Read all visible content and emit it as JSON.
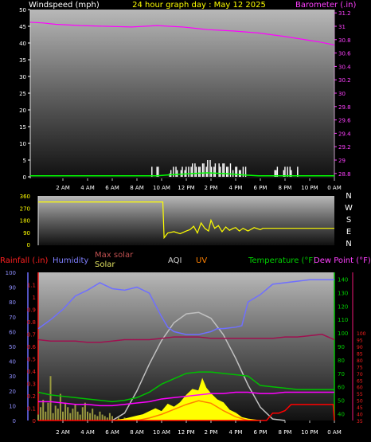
{
  "header": {
    "left_label": "Windspeed (mph)",
    "title": "24 hour graph day : May 12 2025",
    "right_label": "Barometer (.in)"
  },
  "colors": {
    "windspeed": "#ffffff",
    "gust": "#ffffff",
    "wind_avg": "#00ff00",
    "barometer": "#ff00ff",
    "wind_dir": "#ffff00",
    "rainfall": "#ff0000",
    "humidity": "#6f6fff",
    "max_solar": "#c0c0c0",
    "solar": "#ffff00",
    "aqi": "#ffffff",
    "uv": "#ff8000",
    "temperature": "#00c000",
    "dew_point": "#ff00ff",
    "indoor_temp": "#a01050",
    "rain_rate": "#ff0000"
  },
  "legend": {
    "rainfall": "Rainfall (.in)",
    "humidity": "Humidity",
    "max_solar": "Max solar",
    "solar": "Solar",
    "aqi": "AQI",
    "uv": "UV",
    "temperature": "Temperature (°F)",
    "dew_point": "Dew Point (°F)"
  },
  "x_tick_labels": [
    "2 AM",
    "4 AM",
    "6 AM",
    "8 AM",
    "10 AM",
    "12 PM",
    "2 PM",
    "4 PM",
    "6 PM",
    "8 PM",
    "10 PM",
    "0 AM"
  ],
  "chart_data": [
    {
      "type": "line",
      "x": [
        0,
        2,
        4,
        6,
        8,
        10,
        12,
        14,
        16,
        18,
        20,
        22,
        24
      ],
      "y_left_ticks": [
        0,
        5,
        10,
        15,
        20,
        25,
        30,
        35,
        40,
        45,
        50
      ],
      "y_right_ticks": [
        "28.8",
        "29",
        "29.2",
        "29.4",
        "29.6",
        "29.8",
        "30",
        "30.2",
        "30.4",
        "30.6",
        "30.8",
        "31",
        "31.2"
      ],
      "ylim_left": [
        0,
        50
      ],
      "ylim_right": [
        28.75,
        31.25
      ],
      "series": [
        {
          "name": "Barometer",
          "x": [
            0,
            1,
            2,
            4,
            6,
            8,
            10,
            12,
            13,
            14,
            16,
            18,
            20,
            22,
            23,
            24
          ],
          "values": [
            31.06,
            31.05,
            31.03,
            31.01,
            31.0,
            30.99,
            31.01,
            30.99,
            30.97,
            30.95,
            30.93,
            30.9,
            30.85,
            30.79,
            30.76,
            30.72
          ]
        },
        {
          "name": "Windspeed",
          "x": [
            9.5,
            10,
            10.2,
            11,
            11.3,
            11.6,
            12,
            12.2,
            12.5,
            12.8,
            13.1,
            13.4,
            13.7,
            14,
            14.3,
            14.6,
            15,
            15.3,
            15.6,
            16,
            16.3,
            16.6,
            17,
            19.3,
            19.5,
            20,
            20.3,
            20.6,
            21.1
          ],
          "values": [
            0,
            3,
            0,
            1,
            3,
            2,
            3,
            2,
            3,
            4,
            3,
            3,
            4,
            5,
            3,
            4,
            3,
            4,
            3,
            2,
            3,
            2,
            3,
            2,
            3,
            2,
            3,
            2,
            2
          ]
        },
        {
          "name": "Gust",
          "x": [
            9.6,
            10.1,
            11.1,
            11.5,
            11.9,
            12.3,
            12.7,
            13.0,
            13.3,
            13.6,
            13.9,
            14.2,
            14.5,
            14.9,
            15.2,
            15.5,
            15.8,
            16.2,
            16.5,
            16.8,
            19.4,
            20.1,
            20.5,
            21.1
          ],
          "values": [
            3,
            3,
            2,
            3,
            2,
            3,
            3,
            4,
            3,
            4,
            3,
            5,
            3,
            4,
            4,
            3,
            4,
            3,
            2,
            3,
            2,
            3,
            3,
            3
          ]
        },
        {
          "name": "Wind average",
          "x": [
            0,
            10,
            11,
            12,
            13,
            14,
            15,
            16,
            17,
            18,
            24
          ],
          "values": [
            0.3,
            0.3,
            0.6,
            0.8,
            1.0,
            1.2,
            1.0,
            0.8,
            0.5,
            0.3,
            0.3
          ]
        }
      ]
    },
    {
      "type": "line",
      "name": "Wind direction",
      "ylim": [
        0,
        360
      ],
      "y_ticks": [
        0,
        90,
        180,
        270,
        360
      ],
      "compass_labels": [
        "N",
        "W",
        "S",
        "E",
        "N"
      ],
      "x": [
        0,
        4,
        8,
        10.1,
        10.2,
        10.5,
        11,
        11.5,
        12,
        12.3,
        12.6,
        12.9,
        13.2,
        13.5,
        13.8,
        14,
        14.3,
        14.6,
        14.9,
        15.2,
        15.5,
        15.8,
        16,
        16.3,
        16.6,
        17,
        17.5,
        18,
        18.2,
        20,
        22,
        24
      ],
      "values": [
        315,
        315,
        315,
        315,
        50,
        85,
        95,
        80,
        100,
        110,
        135,
        85,
        160,
        120,
        100,
        180,
        120,
        140,
        95,
        130,
        105,
        120,
        125,
        100,
        120,
        100,
        125,
        110,
        120,
        120,
        120,
        120
      ]
    },
    {
      "type": "line",
      "ylim_left_rain": [
        0,
        1.2
      ],
      "y_left_rain_ticks": [
        "0",
        "0.1",
        "0.2",
        "0.3",
        "0.4",
        "0.5",
        "0.6",
        "0.7",
        "0.8",
        "0.9",
        "1",
        "1.1"
      ],
      "ylim_left_pct": [
        0,
        100
      ],
      "y_left_pct_ticks": [
        0,
        10,
        20,
        30,
        40,
        50,
        60,
        70,
        80,
        90,
        100
      ],
      "ylim_temp": [
        35,
        145
      ],
      "y_temp_ticks": [
        40,
        50,
        60,
        70,
        80,
        90,
        100,
        110,
        120,
        130,
        140
      ],
      "y_dew_ticks": [
        35,
        40,
        45,
        50,
        55,
        60,
        65,
        70,
        75,
        80,
        85,
        90,
        95,
        100
      ],
      "series": [
        {
          "name": "Humidity",
          "x": [
            0,
            1,
            2,
            3,
            4,
            5,
            6,
            7,
            8,
            9,
            10,
            10.5,
            11,
            12,
            13,
            14,
            14.5,
            15,
            16,
            16.5,
            17,
            18,
            19,
            20,
            21,
            22,
            23,
            24
          ],
          "values": [
            62,
            68,
            75,
            84,
            88,
            93,
            89,
            88,
            90,
            86,
            70,
            63,
            60,
            58,
            58,
            60,
            62,
            62,
            63,
            64,
            80,
            85,
            92,
            93,
            94,
            95,
            95,
            95
          ]
        },
        {
          "name": "Max solar",
          "x": [
            6,
            7,
            8,
            9,
            10,
            11,
            12,
            13,
            14,
            15,
            16,
            17,
            18,
            19,
            20
          ],
          "values": [
            0,
            5,
            20,
            38,
            54,
            66,
            72,
            73,
            69,
            58,
            42,
            24,
            9,
            1,
            0
          ]
        },
        {
          "name": "Solar",
          "x": [
            6,
            7,
            8,
            8.5,
            9,
            9.5,
            10,
            10.5,
            11,
            11.5,
            12,
            12.5,
            13,
            13.3,
            13.6,
            14,
            14.5,
            15,
            15.5,
            16,
            16.5,
            17,
            17.5,
            18
          ],
          "values": [
            0,
            1,
            3,
            4,
            6,
            8,
            6,
            11,
            9,
            12,
            17,
            21,
            20,
            28,
            22,
            18,
            14,
            12,
            7,
            5,
            2,
            1,
            0.5,
            0
          ]
        },
        {
          "name": "UV",
          "x": [
            8,
            9,
            10,
            11,
            12,
            13,
            14,
            15,
            16,
            17
          ],
          "values": [
            0,
            0.02,
            0.05,
            0.09,
            0.13,
            0.16,
            0.14,
            0.08,
            0.03,
            0
          ]
        },
        {
          "name": "Temperature",
          "x": [
            0,
            1,
            2,
            3,
            4,
            5,
            6,
            7,
            8,
            9,
            10,
            11,
            12,
            13,
            14,
            15,
            16,
            17,
            18,
            19,
            20,
            21,
            22,
            23,
            24
          ],
          "values": [
            56,
            54,
            53,
            52,
            51,
            50,
            49,
            50,
            52,
            56,
            62,
            66,
            70,
            71,
            71,
            70,
            69,
            68,
            61,
            60,
            59,
            58,
            58,
            58,
            58
          ]
        },
        {
          "name": "Dew Point",
          "x": [
            0,
            1,
            2,
            3,
            4,
            5,
            6,
            7,
            8,
            9,
            10,
            11,
            12,
            13,
            14,
            15,
            16,
            17,
            18,
            19,
            20,
            21,
            22,
            23,
            24
          ],
          "values": [
            49,
            49,
            48,
            47,
            47,
            46,
            46,
            47,
            48,
            49,
            51,
            52,
            53,
            54,
            55,
            55,
            56,
            56,
            55,
            55,
            56,
            56,
            56,
            56,
            56
          ]
        },
        {
          "name": "Indoor",
          "x": [
            0,
            1,
            2,
            3,
            4,
            5,
            6,
            7,
            8,
            9,
            10,
            11,
            12,
            13,
            14,
            15,
            16,
            17,
            18,
            19,
            20,
            21,
            22,
            23,
            24
          ],
          "values": [
            95,
            94,
            94,
            94,
            93,
            93,
            94,
            95,
            95,
            95,
            96,
            97,
            97,
            97,
            96,
            96,
            96,
            96,
            96,
            96,
            97,
            97,
            98,
            99,
            95
          ]
        },
        {
          "name": "Rain rate",
          "x": [
            0,
            18.5,
            19,
            19.5,
            20,
            20.5,
            21,
            21.5,
            22,
            22.5,
            23,
            23.9,
            24
          ],
          "values": [
            0,
            0,
            0.06,
            0.06,
            0.08,
            0.13,
            0.13,
            0.13,
            0.13,
            0.13,
            0.13,
            0.13,
            0
          ]
        },
        {
          "name": "AQI",
          "x": [
            0,
            0.2,
            0.4,
            0.6,
            0.8,
            1,
            1.2,
            1.4,
            1.6,
            1.8,
            2,
            2.2,
            2.4,
            2.6,
            2.8,
            3,
            3.2,
            3.4,
            3.6,
            3.8,
            4,
            4.2,
            4.4,
            4.6,
            4.8,
            5,
            5.2,
            5.4,
            5.6,
            5.8,
            6,
            6.5,
            7,
            7.5,
            8
          ],
          "values": [
            4,
            9,
            14,
            6,
            12,
            30,
            5,
            10,
            8,
            18,
            6,
            12,
            9,
            5,
            8,
            11,
            6,
            4,
            9,
            12,
            6,
            5,
            8,
            4,
            3,
            6,
            4,
            3,
            2,
            5,
            3,
            2,
            2,
            1,
            0
          ]
        }
      ]
    }
  ]
}
